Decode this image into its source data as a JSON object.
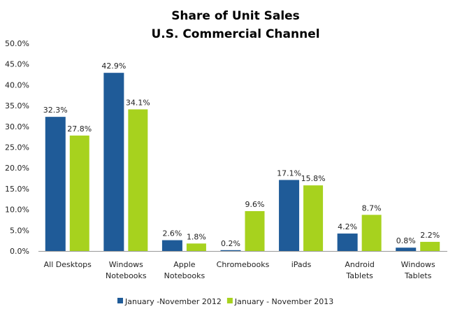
{
  "chart_data": {
    "type": "bar",
    "title": [
      "Share of Unit Sales",
      "U.S. Commercial Channel"
    ],
    "xlabel": "",
    "ylabel": "",
    "ylim": [
      0,
      50
    ],
    "yticks": [
      "0.0%",
      "5.0%",
      "10.0%",
      "15.0%",
      "20.0%",
      "25.0%",
      "30.0%",
      "35.0%",
      "40.0%",
      "45.0%",
      "50.0%"
    ],
    "categories": [
      [
        "All Desktops"
      ],
      [
        "Windows",
        "Notebooks"
      ],
      [
        "Apple",
        "Notebooks"
      ],
      [
        "Chromebooks"
      ],
      [
        "iPads"
      ],
      [
        "Android",
        "Tablets"
      ],
      [
        "Windows",
        "Tablets"
      ]
    ],
    "series": [
      {
        "name": "January -November 2012",
        "color": "#1F5B98",
        "values": [
          32.3,
          42.9,
          2.6,
          0.2,
          17.1,
          4.2,
          0.8
        ],
        "labels": [
          "32.3%",
          "42.9%",
          "2.6%",
          "0.2%",
          "17.1%",
          "4.2%",
          "0.8%"
        ]
      },
      {
        "name": "January - November 2013",
        "color": "#A7D21E",
        "values": [
          27.8,
          34.1,
          1.8,
          9.6,
          15.8,
          8.7,
          2.2
        ],
        "labels": [
          "27.8%",
          "34.1%",
          "1.8%",
          "9.6%",
          "15.8%",
          "8.7%",
          "2.2%"
        ]
      }
    ],
    "grid": false,
    "legend": "bottom"
  }
}
